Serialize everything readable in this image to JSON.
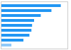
{
  "chart_data": {
    "type": "bar",
    "orientation": "horizontal",
    "categories": [
      null,
      null,
      null,
      null,
      null,
      null,
      null,
      null,
      null
    ],
    "values": [
      90,
      76,
      60,
      50,
      47,
      46,
      43,
      34,
      16
    ],
    "colors": [
      "#2196F3",
      "#2196F3",
      "#2196F3",
      "#2196F3",
      "#2196F3",
      "#2196F3",
      "#2196F3",
      "#2196F3",
      "#90CAF9"
    ],
    "xlim": [
      0,
      100
    ],
    "tick_labels": false
  }
}
